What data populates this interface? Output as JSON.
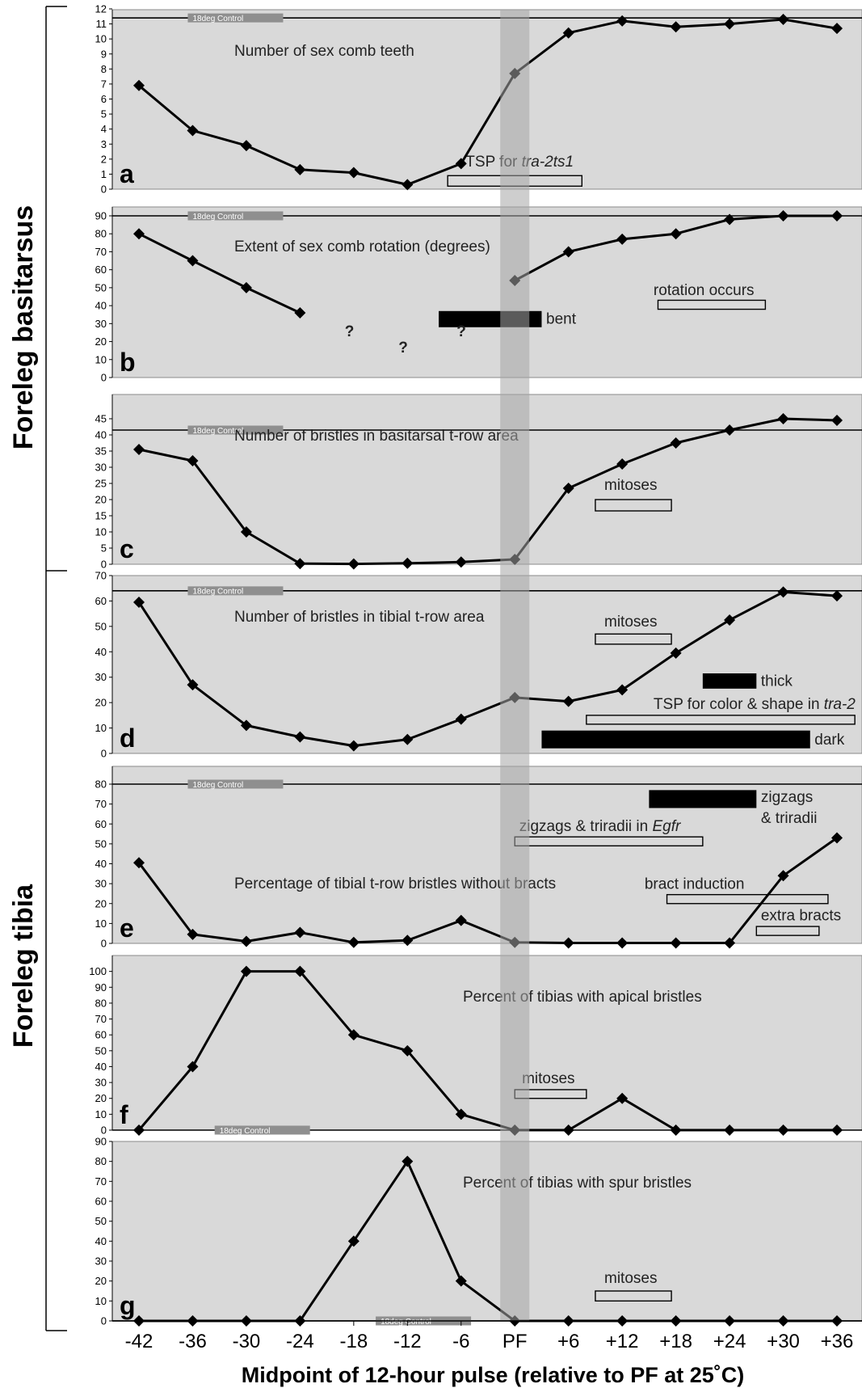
{
  "figure": {
    "xlabel": "Midpoint of 12-hour pulse (relative to PF at 25˚C)",
    "x_tick_labels": [
      "-42",
      "-36",
      "-30",
      "-24",
      "-18",
      "-12",
      "-6",
      "PF",
      "+6",
      "+12",
      "+18",
      "+24",
      "+30",
      "+36"
    ],
    "group_labels": {
      "basitarsus": "Foreleg basitarsus",
      "tibia": "Foreleg tibia"
    },
    "control_label": "18deg Control",
    "colors": {
      "plot_bg": "#d9d9d9",
      "pf_band": "#a6a6a6",
      "line": "#000000",
      "bar": "#000000"
    }
  },
  "chart_data": [
    {
      "type": "line",
      "letter": "a",
      "title": "Number of sex comb teeth",
      "x": [
        -42,
        -36,
        -30,
        -24,
        -18,
        -12,
        -6,
        0,
        6,
        12,
        18,
        24,
        30,
        36
      ],
      "values": [
        6.9,
        3.9,
        2.9,
        1.3,
        1.1,
        0.3,
        1.7,
        7.7,
        10.4,
        11.2,
        10.8,
        11.0,
        11.3,
        10.7
      ],
      "ylim": [
        0,
        12
      ],
      "yticks": [
        0,
        1,
        2,
        3,
        4,
        5,
        6,
        7,
        8,
        9,
        10,
        11,
        12
      ],
      "control": 11.4,
      "control_label_at": -36,
      "annotations": [
        {
          "kind": "box",
          "x0": -7.5,
          "x1": 7.5,
          "y0": 0.2,
          "y1": 0.9,
          "text": "TSP for ",
          "italic": "tra-2ts1",
          "tx": -5.5,
          "ty": 1.5
        }
      ]
    },
    {
      "type": "line",
      "letter": "b",
      "title": "Extent of sex comb rotation (degrees)",
      "segments": [
        {
          "x": [
            -42,
            -36,
            -30,
            -24
          ],
          "values": [
            80,
            65,
            50,
            36
          ]
        },
        {
          "x": [
            0,
            6,
            12,
            18,
            24,
            30,
            36
          ],
          "values": [
            54,
            70,
            77,
            80,
            88,
            90,
            90
          ]
        }
      ],
      "ylim": [
        0,
        90
      ],
      "yticks": [
        0,
        10,
        20,
        30,
        40,
        50,
        60,
        70,
        80,
        90
      ],
      "control": 90,
      "control_label_at": -36,
      "question_marks": [
        {
          "x": -19,
          "y": 23,
          "t": "?"
        },
        {
          "x": -13,
          "y": 14,
          "t": "?"
        },
        {
          "x": -6.5,
          "y": 23,
          "t": "?"
        }
      ],
      "annotations": [
        {
          "kind": "bar",
          "x0": -8.5,
          "x1": 3,
          "y0": 28,
          "y1": 37,
          "text": "bent",
          "tx": 3.5,
          "ty": 30
        },
        {
          "kind": "box",
          "x0": 16,
          "x1": 28,
          "y0": 38,
          "y1": 43,
          "text": "rotation occurs",
          "tx": 15.5,
          "ty": 46
        }
      ]
    },
    {
      "type": "line",
      "letter": "c",
      "title": "Number of bristles in basitarsal t-row area",
      "x": [
        -42,
        -36,
        -30,
        -24,
        -18,
        -12,
        -6,
        0,
        6,
        12,
        18,
        24,
        30,
        36
      ],
      "values": [
        35.5,
        32,
        10,
        0.2,
        0.1,
        0.3,
        0.7,
        1.5,
        23.5,
        31,
        37.5,
        41.5,
        45,
        44.5
      ],
      "ylim": [
        0,
        50
      ],
      "yticks": [
        0,
        5,
        10,
        15,
        20,
        25,
        30,
        35,
        40,
        45
      ],
      "control": 41.5,
      "control_label_at": -36,
      "annotations": [
        {
          "kind": "box",
          "x0": 9,
          "x1": 17.5,
          "y0": 16.5,
          "y1": 20,
          "text": "mitoses",
          "tx": 10,
          "ty": 23
        }
      ]
    },
    {
      "type": "line",
      "letter": "d",
      "title": "Number of bristles in tibial t-row area",
      "x": [
        -42,
        -36,
        -30,
        -24,
        -18,
        -12,
        -6,
        0,
        6,
        12,
        18,
        24,
        30,
        36
      ],
      "values": [
        59.5,
        27,
        11,
        6.5,
        3,
        5.5,
        13.5,
        22,
        20.5,
        25,
        39.5,
        52.5,
        63.5,
        62
      ],
      "ylim": [
        0,
        70
      ],
      "yticks": [
        0,
        10,
        20,
        30,
        40,
        50,
        60,
        70
      ],
      "control": 64,
      "control_label_at": -36,
      "annotations": [
        {
          "kind": "box",
          "x0": 9,
          "x1": 17.5,
          "y0": 43,
          "y1": 47,
          "text": "mitoses",
          "tx": 10,
          "ty": 50
        },
        {
          "kind": "bar",
          "x0": 21,
          "x1": 27,
          "y0": 25.5,
          "y1": 31.5,
          "text": "thick",
          "tx": 27.5,
          "ty": 26.5
        },
        {
          "kind": "box",
          "x0": 8,
          "x1": 38,
          "y0": 11.5,
          "y1": 15,
          "text": "TSP for color & shape in ",
          "italic": "tra-2",
          "tx": 15.5,
          "ty": 17.5
        },
        {
          "kind": "bar",
          "x0": 3,
          "x1": 33,
          "y0": 2,
          "y1": 9,
          "text": "dark",
          "tx": 33.5,
          "ty": 3.5
        }
      ]
    },
    {
      "type": "line",
      "letter": "e",
      "title": "Percentage of tibial t-row bristles without bracts",
      "x": [
        -42,
        -36,
        -30,
        -24,
        -18,
        -12,
        -6,
        0,
        6,
        12,
        18,
        24,
        30,
        36
      ],
      "values": [
        40.5,
        4.5,
        1,
        5.5,
        0.5,
        1.5,
        11.5,
        0.5,
        0.2,
        0.2,
        0.2,
        0.2,
        34,
        53
      ],
      "ylim": [
        0,
        80
      ],
      "yticks": [
        0,
        10,
        20,
        30,
        40,
        50,
        60,
        70,
        80
      ],
      "control": 80,
      "control_label_at": -36,
      "annotations": [
        {
          "kind": "bar",
          "x0": 15,
          "x1": 27,
          "y0": 68,
          "y1": 77,
          "text": "zigzags",
          "tx": 27.5,
          "ty": 71
        },
        {
          "kind": "text",
          "text": "& triradii",
          "tx": 27.5,
          "ty": 60.5
        },
        {
          "kind": "box",
          "x0": 0,
          "x1": 21,
          "y0": 49,
          "y1": 53.5,
          "text": "zigzags & triradii in ",
          "italic": "Egfr",
          "tx": 0.5,
          "ty": 56.5
        },
        {
          "kind": "box",
          "x0": 17,
          "x1": 35,
          "y0": 20,
          "y1": 24.5,
          "text": "bract induction",
          "tx": 14.5,
          "ty": 27.5
        },
        {
          "kind": "box",
          "x0": 27,
          "x1": 34,
          "y0": 4,
          "y1": 8.5,
          "text": "extra bracts",
          "tx": 27.5,
          "ty": 11.5
        }
      ]
    },
    {
      "type": "line",
      "letter": "f",
      "title": "Percent of tibias with apical bristles",
      "x": [
        -42,
        -36,
        -30,
        -24,
        -18,
        -12,
        -6,
        0,
        6,
        12,
        18,
        24,
        30,
        36
      ],
      "values": [
        0,
        40,
        100,
        100,
        60,
        50,
        10,
        0,
        0,
        20,
        0,
        0,
        0,
        0
      ],
      "ylim": [
        0,
        110
      ],
      "yticks": [
        0,
        10,
        20,
        30,
        40,
        50,
        60,
        70,
        80,
        90,
        100
      ],
      "control": 0,
      "control_label_at": -33,
      "annotations": [
        {
          "kind": "box",
          "x0": 0,
          "x1": 8,
          "y0": 20,
          "y1": 25.5,
          "text": "mitoses",
          "tx": 0.8,
          "ty": 29.5
        }
      ]
    },
    {
      "type": "line",
      "letter": "g",
      "title": "Percent of tibias with spur bristles",
      "x": [
        -42,
        -36,
        -30,
        -24,
        -18,
        -12,
        -6,
        0,
        6,
        12,
        18,
        24,
        30,
        36
      ],
      "values": [
        0,
        0,
        0,
        0,
        40,
        80,
        20,
        0,
        0,
        0,
        0,
        0,
        0,
        0
      ],
      "ylim": [
        0,
        90
      ],
      "yticks": [
        0,
        10,
        20,
        30,
        40,
        50,
        60,
        70,
        80,
        90
      ],
      "control": 0,
      "control_label_at": -15,
      "annotations": [
        {
          "kind": "box",
          "x0": 9,
          "x1": 17.5,
          "y0": 10,
          "y1": 15,
          "text": "mitoses",
          "tx": 10,
          "ty": 19
        }
      ]
    }
  ]
}
